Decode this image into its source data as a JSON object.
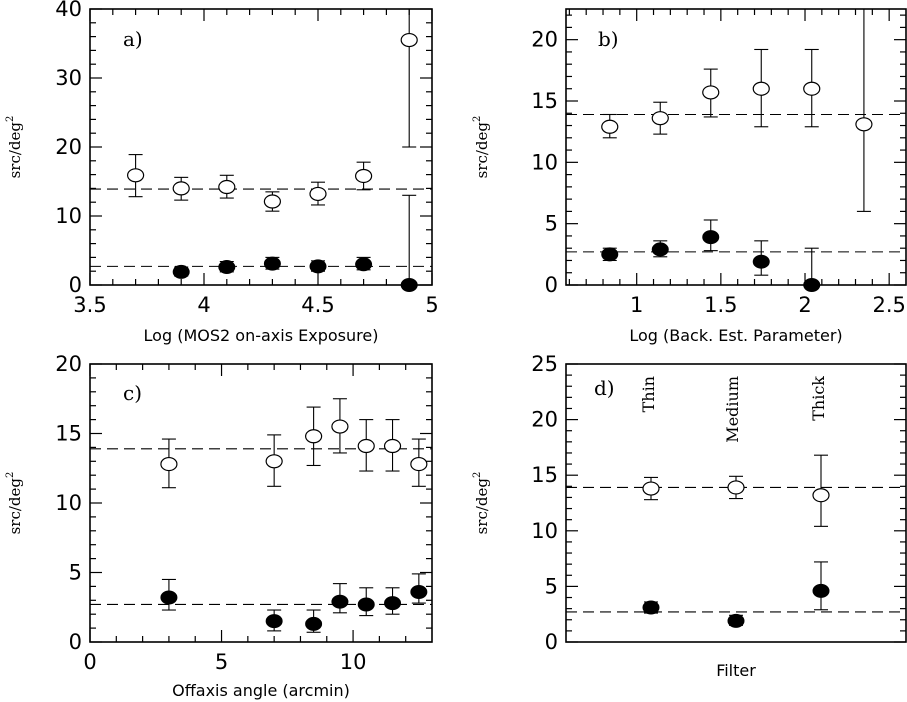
{
  "chart_data": [
    {
      "type": "scatter",
      "panel_label": "a)",
      "xlabel": "Log (MOS2 on-axis Exposure)",
      "ylabel": "src/deg",
      "ylabel_sup": "2",
      "xlim": [
        3.5,
        5.0
      ],
      "ylim": [
        0,
        40
      ],
      "xticks": [
        3.5,
        4,
        4.5,
        5
      ],
      "xtick_labels": [
        "3.5",
        "4",
        "4.5",
        "5"
      ],
      "xminor": [
        3.6,
        3.7,
        3.8,
        3.9,
        4.1,
        4.2,
        4.3,
        4.4,
        4.6,
        4.7,
        4.8,
        4.9
      ],
      "yticks": [
        0,
        10,
        20,
        30,
        40
      ],
      "ytick_labels": [
        "0",
        "10",
        "20",
        "30",
        "40"
      ],
      "yminor": [
        2,
        4,
        6,
        8,
        12,
        14,
        16,
        18,
        22,
        24,
        26,
        28,
        32,
        34,
        36,
        38
      ],
      "reference_lines": [
        13.9,
        2.7
      ],
      "series": [
        {
          "marker": "open",
          "x": [
            3.7,
            3.9,
            4.1,
            4.3,
            4.5,
            4.7,
            4.9
          ],
          "y": [
            15.9,
            14.0,
            14.2,
            12.1,
            13.2,
            15.8,
            35.5
          ],
          "err_low": [
            12.8,
            12.3,
            12.6,
            10.7,
            11.6,
            13.8,
            20.0
          ],
          "err_high": [
            18.9,
            15.6,
            15.9,
            13.5,
            14.9,
            17.8,
            null
          ]
        },
        {
          "marker": "filled",
          "x": [
            3.9,
            4.1,
            4.3,
            4.5,
            4.7,
            4.9
          ],
          "y": [
            1.9,
            2.6,
            3.1,
            2.7,
            3.0,
            0.0
          ],
          "err_low": [
            1.3,
            1.9,
            2.3,
            2.0,
            2.2,
            0.0
          ],
          "err_high": [
            2.6,
            3.4,
            4.0,
            3.5,
            4.0,
            13.0
          ]
        }
      ]
    },
    {
      "type": "scatter",
      "panel_label": "b)",
      "xlabel": "Log (Back. Est. Parameter)",
      "ylabel": "src/deg",
      "ylabel_sup": "2",
      "xlim": [
        0.58,
        2.6
      ],
      "ylim": [
        0,
        22.5
      ],
      "xticks": [
        1,
        1.5,
        2,
        2.5
      ],
      "xtick_labels": [
        "1",
        "1.5",
        "2",
        "2.5"
      ],
      "xminor": [
        0.6,
        0.7,
        0.8,
        0.9,
        1.1,
        1.2,
        1.3,
        1.4,
        1.6,
        1.7,
        1.8,
        1.9,
        2.1,
        2.2,
        2.3,
        2.4
      ],
      "yticks": [
        0,
        5,
        10,
        15,
        20
      ],
      "ytick_labels": [
        "0",
        "5",
        "10",
        "15",
        "20"
      ],
      "yminor": [
        1,
        2,
        3,
        4,
        6,
        7,
        8,
        9,
        11,
        12,
        13,
        14,
        16,
        17,
        18,
        19,
        21,
        22
      ],
      "reference_lines": [
        13.9,
        2.7
      ],
      "series": [
        {
          "marker": "open",
          "x": [
            0.84,
            1.14,
            1.44,
            1.74,
            2.04,
            2.35
          ],
          "y": [
            12.9,
            13.6,
            15.7,
            16.0,
            16.0,
            13.1
          ],
          "err_low": [
            12.0,
            12.3,
            13.7,
            12.9,
            12.9,
            6.0
          ],
          "err_high": [
            13.9,
            14.9,
            17.6,
            19.2,
            19.2,
            22.5
          ]
        },
        {
          "marker": "filled",
          "x": [
            0.84,
            1.14,
            1.44,
            1.74,
            2.04
          ],
          "y": [
            2.5,
            2.9,
            3.9,
            1.9,
            0.0
          ],
          "err_low": [
            2.0,
            2.3,
            2.8,
            0.8,
            0.0
          ],
          "err_high": [
            3.0,
            3.6,
            5.3,
            3.6,
            3.0
          ]
        }
      ]
    },
    {
      "type": "scatter",
      "panel_label": "c)",
      "xlabel": "Offaxis angle (arcmin)",
      "ylabel": "src/deg",
      "ylabel_sup": "2",
      "xlim": [
        0,
        13
      ],
      "ylim": [
        0,
        20
      ],
      "xticks": [
        0,
        5,
        10
      ],
      "xtick_labels": [
        "0",
        "5",
        "10"
      ],
      "xminor": [
        1,
        2,
        3,
        4,
        6,
        7,
        8,
        9,
        11,
        12
      ],
      "yticks": [
        0,
        5,
        10,
        15,
        20
      ],
      "ytick_labels": [
        "0",
        "5",
        "10",
        "15",
        "20"
      ],
      "yminor": [
        1,
        2,
        3,
        4,
        6,
        7,
        8,
        9,
        11,
        12,
        13,
        14,
        16,
        17,
        18,
        19
      ],
      "reference_lines": [
        13.9,
        2.7
      ],
      "series": [
        {
          "marker": "open",
          "x": [
            3.0,
            7.0,
            8.5,
            9.5,
            10.5,
            11.5,
            12.5
          ],
          "y": [
            12.8,
            13.0,
            14.8,
            15.5,
            14.1,
            14.1,
            12.8
          ],
          "err_low": [
            11.1,
            11.2,
            12.7,
            13.6,
            12.3,
            12.3,
            11.2
          ],
          "err_high": [
            14.6,
            14.9,
            16.9,
            17.5,
            16.0,
            16.0,
            14.6
          ]
        },
        {
          "marker": "filled",
          "x": [
            3.0,
            7.0,
            8.5,
            9.5,
            10.5,
            11.5,
            12.5
          ],
          "y": [
            3.2,
            1.5,
            1.3,
            2.9,
            2.7,
            2.8,
            3.6
          ],
          "err_low": [
            2.3,
            0.8,
            0.7,
            2.1,
            1.9,
            2.0,
            2.8
          ],
          "err_high": [
            4.5,
            2.3,
            2.3,
            4.2,
            3.9,
            3.9,
            4.9
          ]
        }
      ]
    },
    {
      "type": "scatter",
      "panel_label": "d)",
      "xlabel": "Filter",
      "ylabel": "src/deg",
      "ylabel_sup": "2",
      "xlim": [
        0,
        4
      ],
      "ylim": [
        0,
        25
      ],
      "xticks": [],
      "xtick_labels": [],
      "xminor": [],
      "yticks": [
        0,
        5,
        10,
        15,
        20,
        25
      ],
      "ytick_labels": [
        "0",
        "5",
        "10",
        "15",
        "20",
        "25"
      ],
      "yminor": [
        1,
        2,
        3,
        4,
        6,
        7,
        8,
        9,
        11,
        12,
        13,
        14,
        16,
        17,
        18,
        19,
        21,
        22,
        23,
        24
      ],
      "reference_lines": [
        13.9,
        2.7
      ],
      "categories": [
        "Thin",
        "Medium",
        "Thick"
      ],
      "category_x": [
        1,
        2,
        3
      ],
      "series": [
        {
          "marker": "open",
          "x": [
            1,
            2,
            3
          ],
          "y": [
            13.8,
            13.9,
            13.2
          ],
          "err_low": [
            12.8,
            12.9,
            10.4
          ],
          "err_high": [
            14.8,
            14.9,
            16.8
          ]
        },
        {
          "marker": "filled",
          "x": [
            1,
            2,
            3
          ],
          "y": [
            3.1,
            1.9,
            4.6
          ],
          "err_low": [
            2.6,
            1.5,
            2.9
          ],
          "err_high": [
            3.6,
            2.4,
            7.2
          ]
        }
      ]
    }
  ]
}
